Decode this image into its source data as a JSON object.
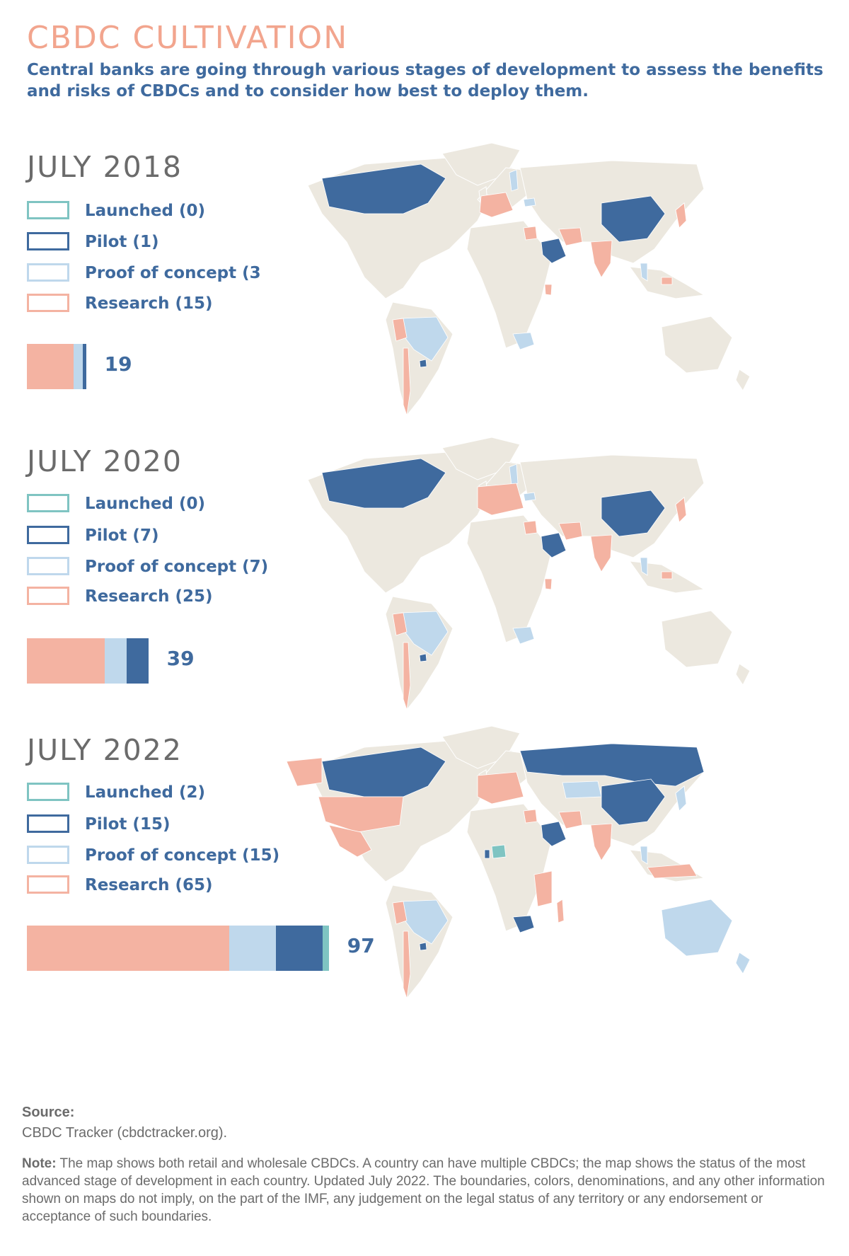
{
  "title": "CBDC CULTIVATION",
  "subtitle": "Central banks are going through various stages of development to assess the benefits and risks of CBDCs and to consider how best to deploy them.",
  "colors": {
    "launched": "#7FC4C2",
    "pilot": "#3F6A9E",
    "proof": "#BFD8EC",
    "research": "#F4B3A2",
    "land": "#ECE8DF"
  },
  "panels": [
    {
      "year": "JULY 2018",
      "legend": {
        "launched": "Launched (0)",
        "pilot": "Pilot (1)",
        "proof": "Proof of concept (3",
        "research": "Research (15)"
      },
      "counts": {
        "research": 15,
        "proof": 3,
        "pilot": 1,
        "launched": 0
      },
      "total": "19"
    },
    {
      "year": "JULY 2020",
      "legend": {
        "launched": "Launched (0)",
        "pilot": "Pilot (7)",
        "proof": "Proof of concept (7)",
        "research": "Research (25)"
      },
      "counts": {
        "research": 25,
        "proof": 7,
        "pilot": 7,
        "launched": 0
      },
      "total": "39"
    },
    {
      "year": "JULY 2022",
      "legend": {
        "launched": "Launched (2)",
        "pilot": "Pilot (15)",
        "proof": "Proof of concept (15)",
        "research": "Research (65)"
      },
      "counts": {
        "research": 65,
        "proof": 15,
        "pilot": 15,
        "launched": 2
      },
      "total": "97"
    }
  ],
  "source_label": "Source:",
  "source_text": "CBDC Tracker (cbdctracker.org).",
  "note_label": "Note:",
  "note_text": " The map shows both retail and wholesale CBDCs. A country can have multiple CBDCs; the map shows the status of the most advanced stage of development in each country. Updated July 2022. The boundaries, colors, denominations, and any other information shown on maps do not imply, on the part of the IMF, any judgement on the legal status of any territory or any endorsement or acceptance of such boundaries."
}
